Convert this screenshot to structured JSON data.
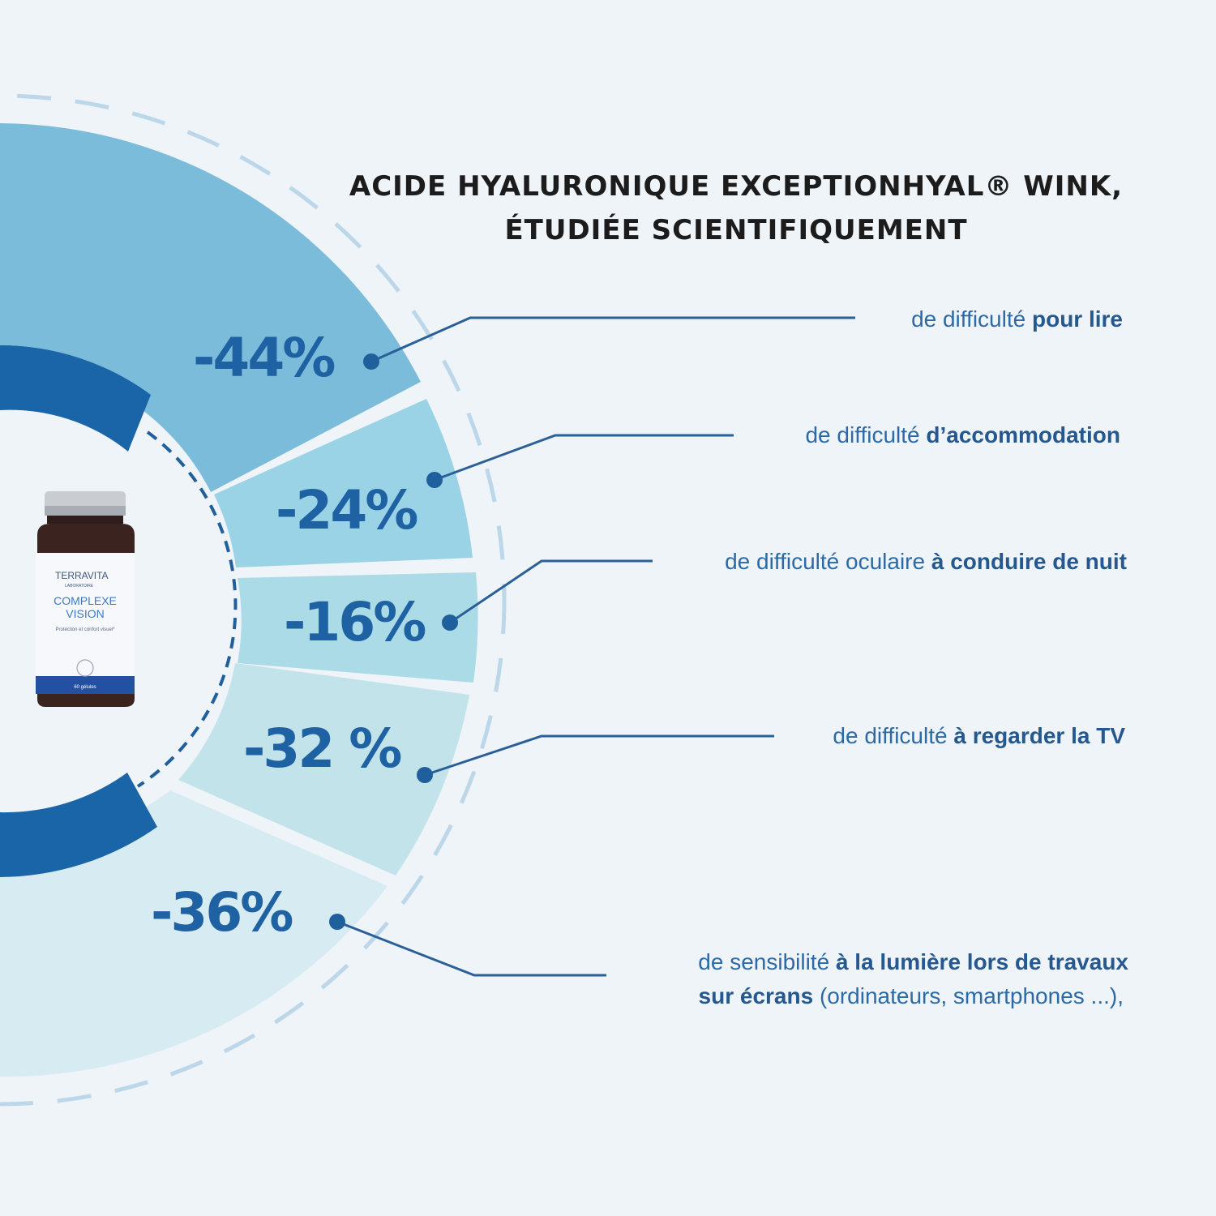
{
  "title": {
    "line1": "ACIDE HYALURONIQUE EXCEPTIONHYAL® WINK,",
    "line2": "ÉTUDIÉE SCIENTIFIQUEMENT"
  },
  "product": {
    "brand": "TERRAVITA",
    "brand_sub": "LABORATOIRE",
    "name_line1": "COMPLEXE",
    "name_line2": "VISION",
    "tagline": "Protection et confort visuel*",
    "count": "60 gélules"
  },
  "colors": {
    "slice_44": "#7cbcdb",
    "slice_24": "#9ad3e5",
    "slice_16": "#abdbe6",
    "slice_32": "#c2e3ea",
    "slice_36": "#d7ebf3",
    "accent": "#1a65a8",
    "text": "#2c6aa7",
    "dashed": "#b9d5ea"
  },
  "chart_data": {
    "type": "pie",
    "title": "ACIDE HYALURONIQUE EXCEPTIONHYAL® WINK, ÉTUDIÉE SCIENTIFIQUEMENT",
    "series": [
      {
        "value_label": "-44%",
        "value": -44,
        "description": [
          {
            "text": "de difficulté ",
            "bold": false
          },
          {
            "text": "pour lire",
            "bold": true
          }
        ]
      },
      {
        "value_label": "-24%",
        "value": -24,
        "description": [
          {
            "text": "de difficulté ",
            "bold": false
          },
          {
            "text": "d’accommodation",
            "bold": true
          }
        ]
      },
      {
        "value_label": "-16%",
        "value": -16,
        "description": [
          {
            "text": "de difficulté oculaire ",
            "bold": false
          },
          {
            "text": "à conduire de nuit",
            "bold": true
          }
        ]
      },
      {
        "value_label": "-32 %",
        "value": -32,
        "description": [
          {
            "text": "de difficulté ",
            "bold": false
          },
          {
            "text": "à regarder la TV",
            "bold": true
          }
        ]
      },
      {
        "value_label": "-36%",
        "value": -36,
        "description": [
          {
            "text": "de sensibilité ",
            "bold": false
          },
          {
            "text": "à la lumière lors de travaux",
            "bold": true
          }
        ],
        "description_line2": [
          {
            "text": "sur écrans",
            "bold": true
          },
          {
            "text": " (ordinateurs, smartphones ...),",
            "bold": false
          }
        ]
      }
    ]
  }
}
